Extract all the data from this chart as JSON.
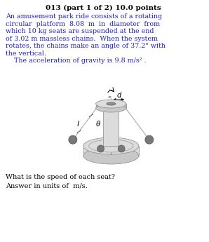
{
  "title": "013 (part 1 of 2) 10.0 points",
  "body_lines": [
    "An amusement park ride consists of a rotating",
    "circular  platform  8.08  m  in  diameter  from",
    "which 10 kg seats are suspended at the end",
    "of 3.02 m massless chains.  When the system",
    "rotates, the chains make an angle of 37.2° with",
    "the vertical."
  ],
  "gravity_line": "    The acceleration of gravity is 9.8 m/s² .",
  "question_lines": [
    "What is the speed of each seat?",
    "Answer in units of  m/s."
  ],
  "title_color": "#000000",
  "body_color": "#2222cc",
  "question_color": "#000000",
  "bg_color": "#ffffff",
  "platform_light": "#dcdcdc",
  "platform_mid": "#c8c8c8",
  "platform_dark": "#b0b0b0",
  "hole_color": "#909090",
  "seat_color": "#787878",
  "chain_color": "#aaaaaa",
  "line_color": "#888888"
}
